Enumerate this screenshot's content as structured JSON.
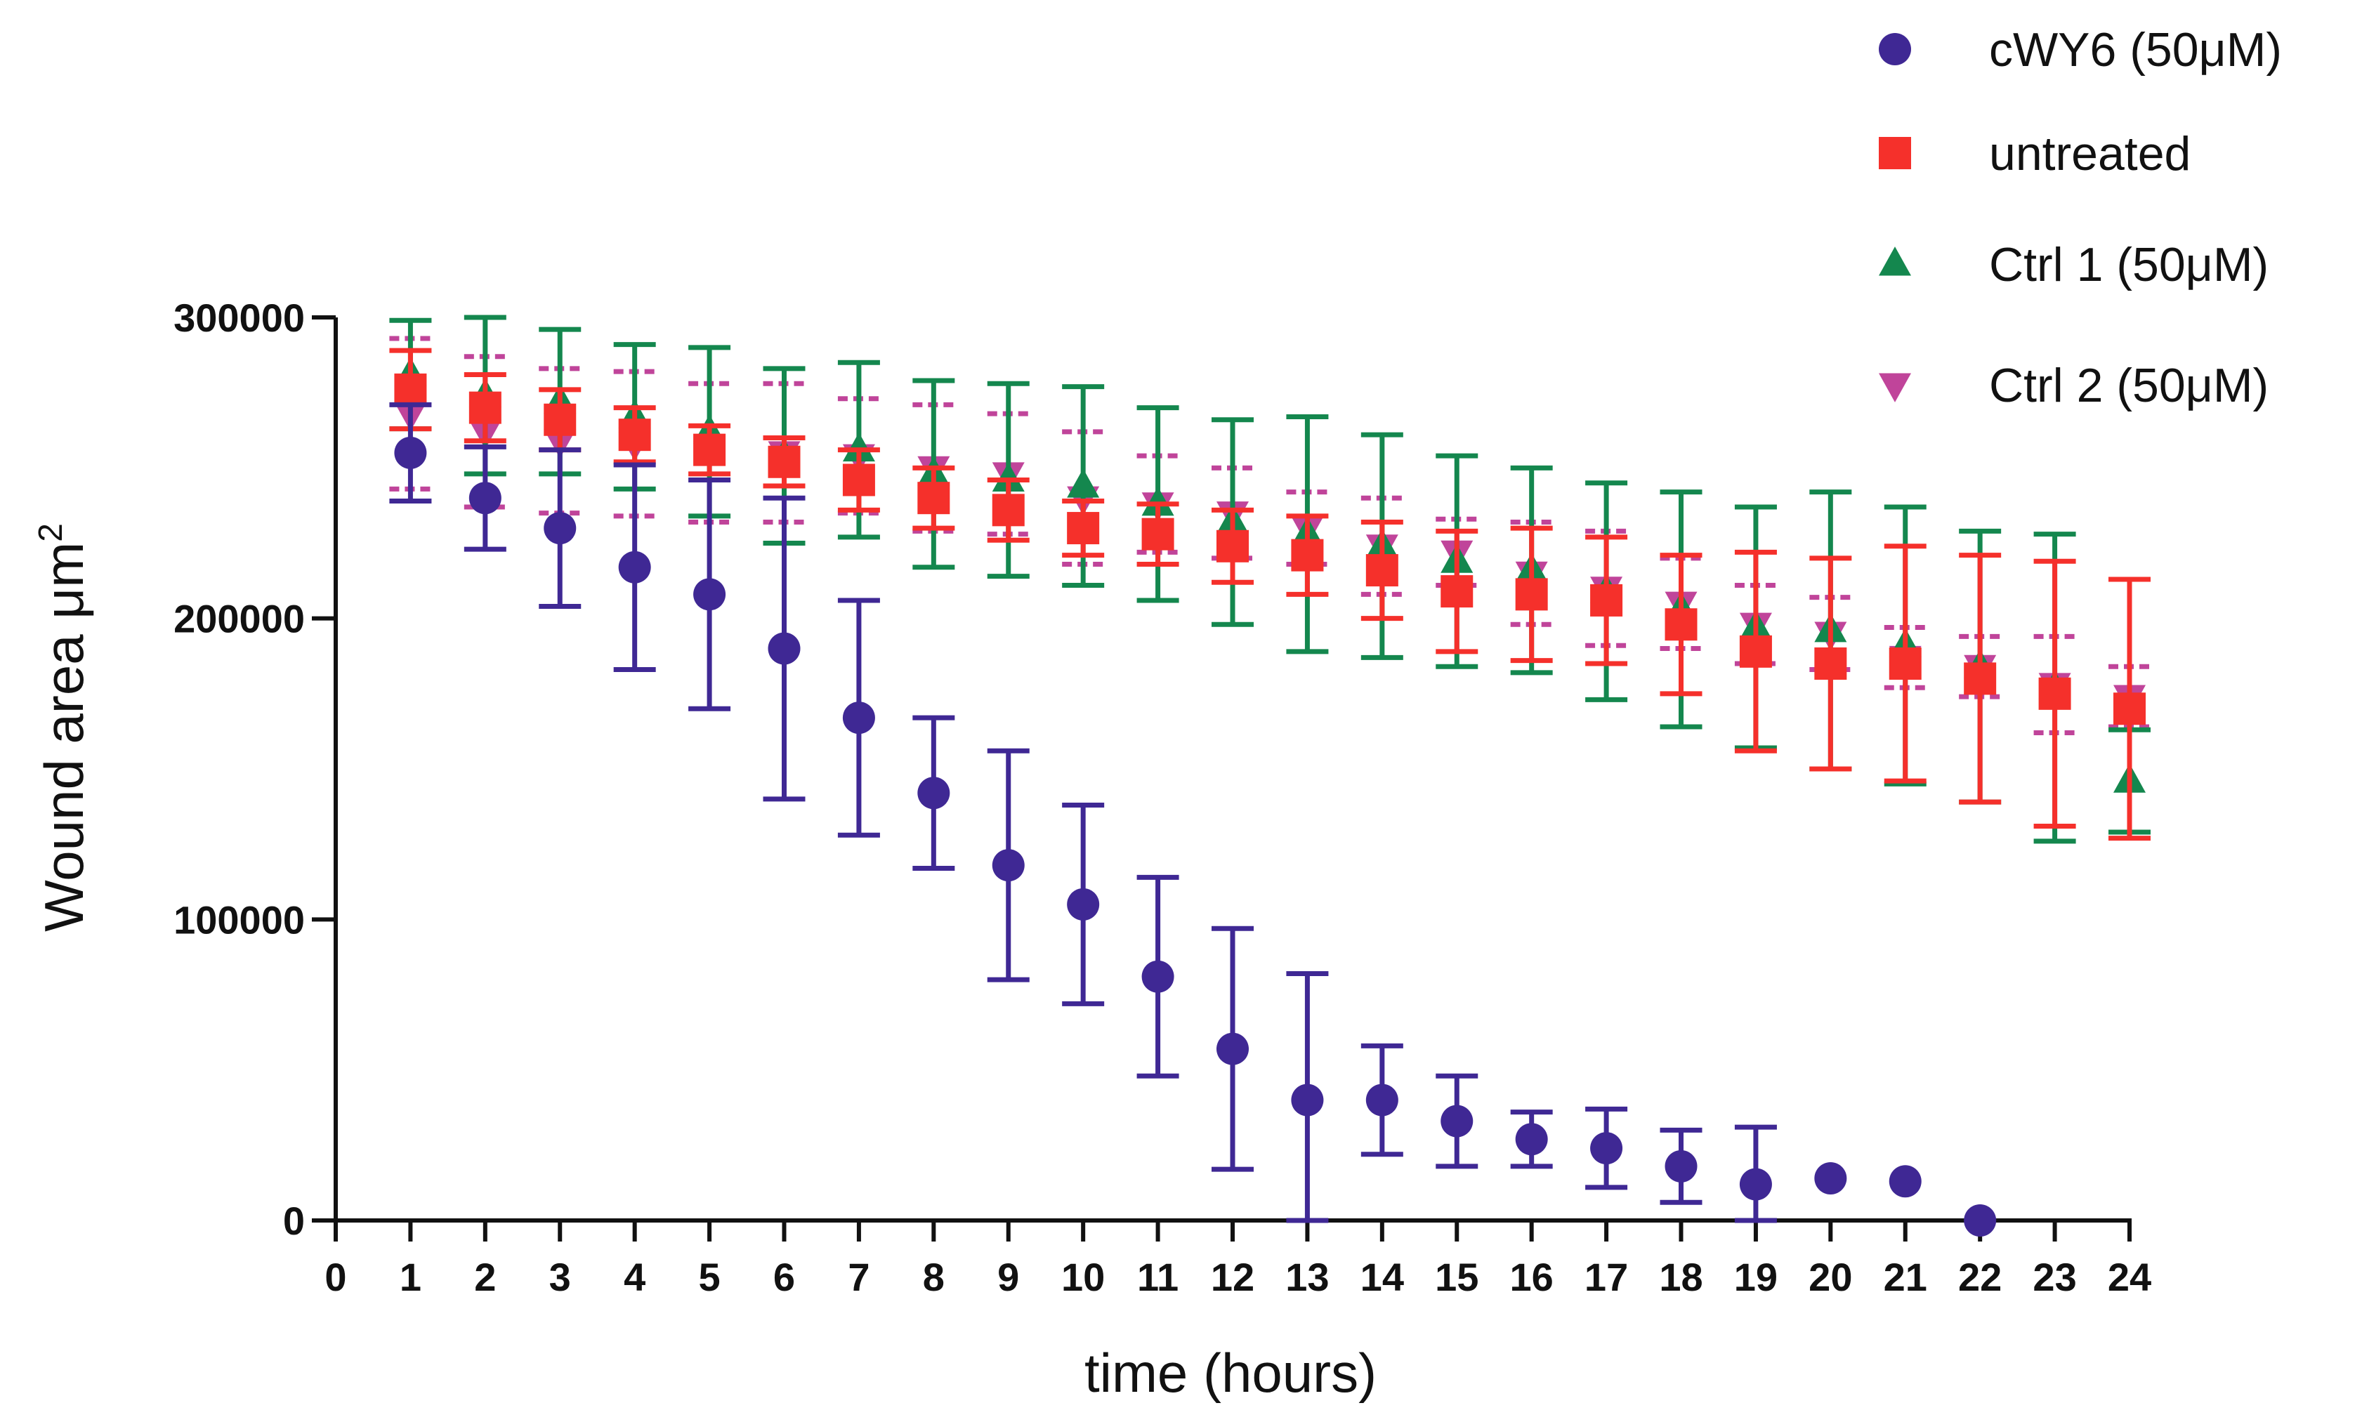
{
  "chart_data": {
    "type": "scatter",
    "title": "",
    "xlabel": "time (hours)",
    "ylabel": "Wound area μm²",
    "ylabel_main": "Wound area μm",
    "ylabel_sup": "2",
    "xlim": [
      0,
      24
    ],
    "ylim": [
      0,
      300000
    ],
    "x_ticks": [
      "0",
      "1",
      "2",
      "3",
      "4",
      "5",
      "6",
      "7",
      "8",
      "9",
      "10",
      "11",
      "12",
      "13",
      "14",
      "15",
      "16",
      "17",
      "18",
      "19",
      "20",
      "21",
      "22",
      "23",
      "24"
    ],
    "y_ticks": [
      "0",
      "100000",
      "200000",
      "300000"
    ],
    "legend_position": "top-right",
    "grid": false,
    "series": [
      {
        "name": "Ctrl 2 (50μM)",
        "marker": "triangle-down",
        "color": "#c0449a",
        "x": [
          1,
          2,
          3,
          4,
          5,
          6,
          7,
          8,
          9,
          10,
          11,
          12,
          13,
          14,
          15,
          16,
          17,
          18,
          19,
          20,
          21,
          22,
          23,
          24
        ],
        "y": [
          268000,
          262000,
          259000,
          258000,
          255000,
          255000,
          254000,
          250000,
          248000,
          240000,
          238000,
          235000,
          230000,
          224000,
          222000,
          215000,
          210000,
          205000,
          198000,
          195000,
          187000,
          184000,
          178000,
          174000
        ],
        "err": [
          25000,
          25000,
          24000,
          24000,
          23000,
          23000,
          19000,
          21000,
          20000,
          22000,
          16000,
          15000,
          12000,
          16000,
          11000,
          17000,
          19000,
          15000,
          13000,
          12000,
          10000,
          10000,
          16000,
          10000
        ]
      },
      {
        "name": "Ctrl 1 (50μM)",
        "marker": "triangle-up",
        "color": "#14874e",
        "x": [
          1,
          2,
          3,
          4,
          5,
          6,
          7,
          8,
          9,
          10,
          11,
          12,
          13,
          14,
          15,
          16,
          17,
          18,
          19,
          20,
          21,
          22,
          23,
          24
        ],
        "y": [
          281000,
          274000,
          272000,
          267000,
          262000,
          254000,
          256000,
          248000,
          246000,
          244000,
          238000,
          232000,
          228000,
          224000,
          219000,
          216000,
          209000,
          203000,
          197000,
          196000,
          191000,
          184000,
          177000,
          146000
        ],
        "err": [
          18000,
          26000,
          24000,
          24000,
          28000,
          29000,
          29000,
          31000,
          32000,
          33000,
          32000,
          34000,
          39000,
          37000,
          35000,
          34000,
          36000,
          39000,
          40000,
          46000,
          46000,
          45000,
          51000,
          17000
        ]
      },
      {
        "name": "untreated",
        "marker": "square",
        "color": "#f5302b",
        "x": [
          1,
          2,
          3,
          4,
          5,
          6,
          7,
          8,
          9,
          10,
          11,
          12,
          13,
          14,
          15,
          16,
          17,
          18,
          19,
          20,
          21,
          22,
          23,
          24
        ],
        "y": [
          276000,
          270000,
          266000,
          261000,
          256000,
          252000,
          246000,
          240000,
          236000,
          230000,
          228000,
          224000,
          221000,
          216000,
          209000,
          208000,
          206000,
          198000,
          189000,
          185000,
          185000,
          180000,
          175000,
          170000
        ],
        "err": [
          13000,
          11000,
          10000,
          9000,
          8000,
          8000,
          10000,
          10000,
          10000,
          9000,
          10000,
          12000,
          13000,
          16000,
          20000,
          22000,
          21000,
          23000,
          33000,
          35000,
          39000,
          41000,
          44000,
          43000
        ]
      },
      {
        "name": "cWY6 (50μM)",
        "marker": "circle",
        "color": "#3f2894",
        "x": [
          1,
          2,
          3,
          4,
          5,
          6,
          7,
          8,
          9,
          10,
          11,
          12,
          13,
          14,
          15,
          16,
          17,
          18,
          19,
          20,
          21,
          22
        ],
        "y": [
          255000,
          240000,
          230000,
          217000,
          208000,
          190000,
          167000,
          142000,
          118000,
          105000,
          81000,
          57000,
          40000,
          40000,
          33000,
          27000,
          24000,
          18000,
          12000,
          14000,
          13000,
          0
        ],
        "err": [
          16000,
          17000,
          26000,
          34000,
          38000,
          50000,
          39000,
          25000,
          38000,
          33000,
          33000,
          40000,
          42000,
          18000,
          15000,
          9000,
          13000,
          12000,
          19000,
          0,
          0,
          0
        ]
      }
    ],
    "legend_order": [
      "cWY6 (50μM)",
      "untreated",
      "Ctrl 1 (50μM)",
      "Ctrl 2 (50μM)"
    ]
  }
}
